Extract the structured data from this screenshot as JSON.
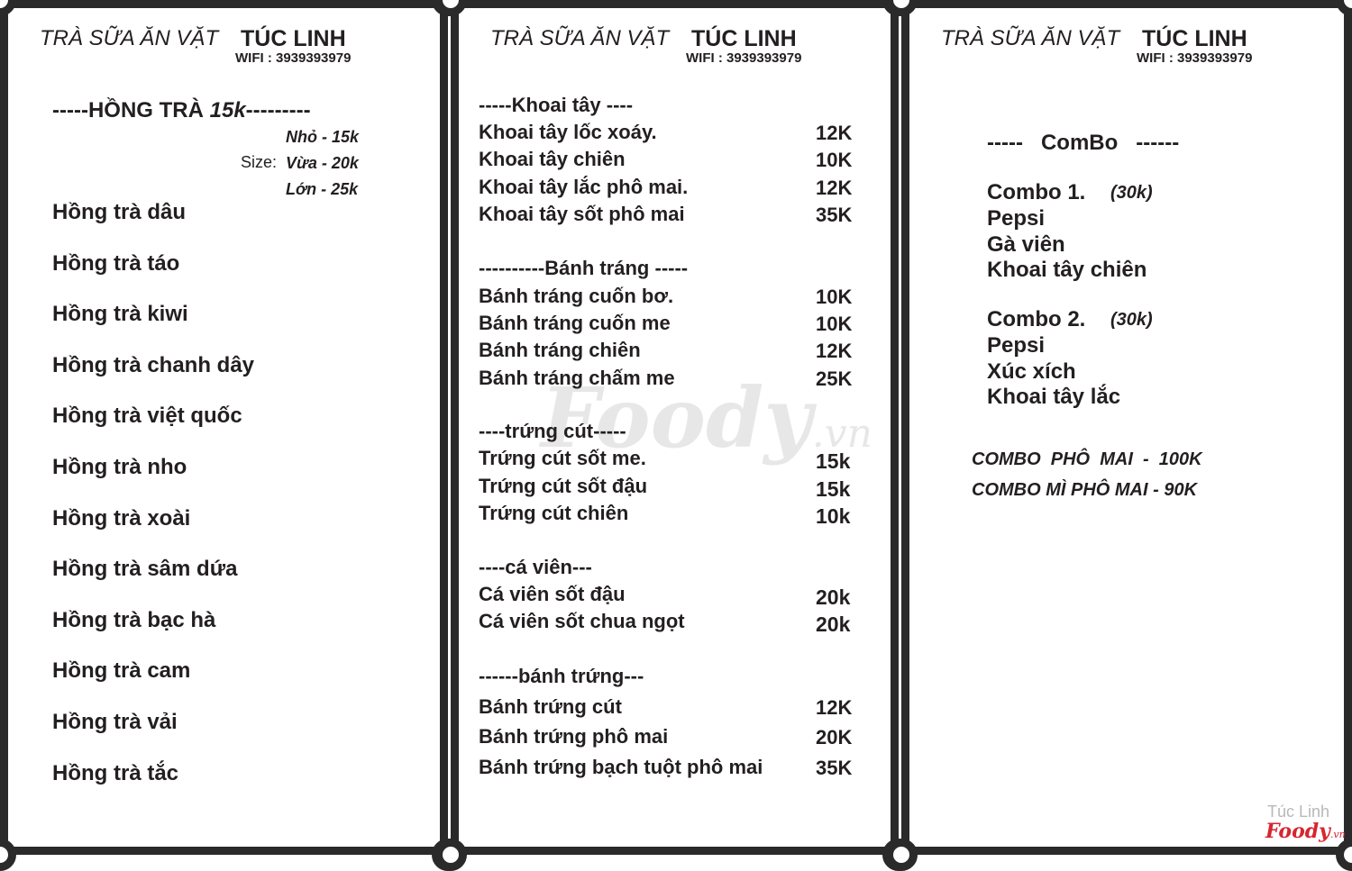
{
  "header": {
    "brand_prefix": "TRÀ SỮA ĂN VẶT",
    "brand_name": "TÚC LINH",
    "wifi": "WIFI : 3939393979"
  },
  "panel1": {
    "section_prefix": "-----HỒNG TRÀ ",
    "section_price": "15k",
    "section_suffix": "---------",
    "size_label": "Size:",
    "sizes": [
      "Nhỏ - 15k",
      "Vừa - 20k",
      "Lớn - 25k"
    ],
    "items": [
      "Hồng trà dâu",
      "Hồng trà táo",
      "Hồng trà kiwi",
      "Hồng trà chanh dây",
      "Hồng trà việt quốc",
      "Hồng trà nho",
      "Hồng trà xoài",
      "Hồng trà sâm dứa",
      "Hồng trà bạc hà",
      "Hồng trà cam",
      "Hồng trà vải",
      "Hồng trà tắc"
    ]
  },
  "panel2": {
    "sections": [
      {
        "title": "-----Khoai tây ----",
        "items": [
          {
            "name": "Khoai tây lốc xoáy.",
            "price": "12K"
          },
          {
            "name": "Khoai tây chiên",
            "price": "10K"
          },
          {
            "name": "Khoai tây lắc phô mai.",
            "price": "12K"
          },
          {
            "name": "Khoai tây sốt phô mai",
            "price": "35K"
          }
        ]
      },
      {
        "title": "----------Bánh tráng -----",
        "items": [
          {
            "name": "Bánh tráng cuốn bơ.",
            "price": "10K"
          },
          {
            "name": "Bánh tráng cuốn me",
            "price": "10K"
          },
          {
            "name": "Bánh tráng chiên",
            "price": "12K"
          },
          {
            "name": "Bánh tráng chấm me",
            "price": "25K"
          }
        ]
      },
      {
        "title": "----trứng cút-----",
        "items": [
          {
            "name": "Trứng cút sốt me.",
            "price": "15k"
          },
          {
            "name": "Trứng cút sốt đậu",
            "price": "15k"
          },
          {
            "name": "Trứng cút chiên",
            "price": "10k"
          }
        ]
      },
      {
        "title": "----cá viên---",
        "items": [
          {
            "name": "Cá viên sốt đậu",
            "price": "20k"
          },
          {
            "name": "Cá viên sốt chua ngọt",
            "price": "20k"
          }
        ]
      },
      {
        "title": "------bánh trứng---",
        "items": [
          {
            "name": "Bánh trứng cút",
            "price": "12K"
          },
          {
            "name": "Bánh trứng phô mai",
            "price": "20K"
          },
          {
            "name": "Bánh trứng bạch tuột phô mai",
            "price": "35K"
          }
        ]
      }
    ]
  },
  "panel3": {
    "title": "-----   ComBo   ------",
    "combos": [
      {
        "name": "Combo 1.",
        "price": "(30k)",
        "items": [
          "Pepsi",
          "Gà viên",
          "Khoai tây chiên"
        ]
      },
      {
        "name": "Combo 2.",
        "price": "(30k)",
        "items": [
          "Pepsi",
          "Xúc xích",
          "Khoai tây lắc"
        ]
      }
    ],
    "specials": [
      "COMBO  PHÔ  MAI  -  100K",
      "COMBO MÌ PHÔ MAI - 90K"
    ]
  },
  "watermark": {
    "text": "Foody",
    "suffix": ".vn"
  },
  "logo": {
    "store": "Túc Linh",
    "brand": "Foody",
    "suffix": ".vn",
    "brand_color": "#d7262f"
  }
}
